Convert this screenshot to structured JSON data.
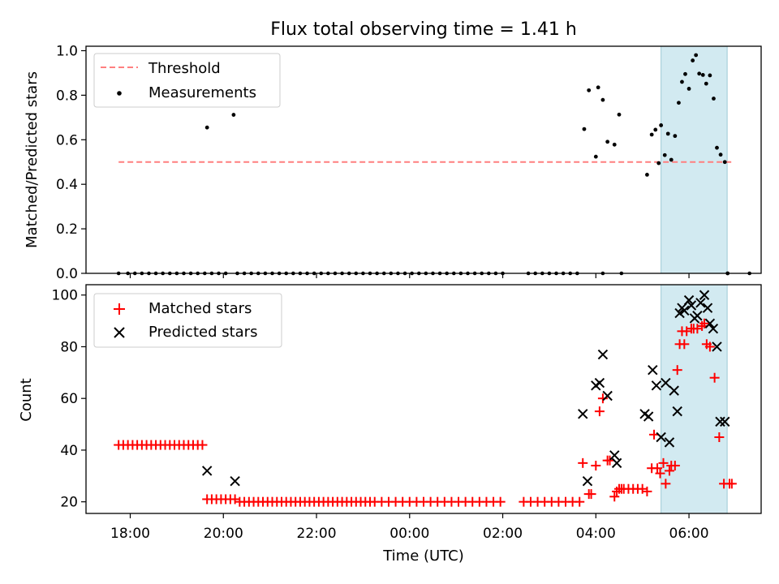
{
  "chart_data": {
    "title": "Flux total observing time = 1.41 h",
    "x_axis": {
      "label": "Time (UTC)",
      "range_hours": [
        17.05,
        31.55
      ],
      "ticks": [
        {
          "value": 18,
          "label": "18:00"
        },
        {
          "value": 20,
          "label": "20:00"
        },
        {
          "value": 22,
          "label": "22:00"
        },
        {
          "value": 24,
          "label": "00:00"
        },
        {
          "value": 26,
          "label": "02:00"
        },
        {
          "value": 28,
          "label": "04:00"
        },
        {
          "value": 30,
          "label": "06:00"
        }
      ],
      "shaded_interval_hours": [
        29.4,
        30.82
      ],
      "shade_color": "#add8e6"
    },
    "panels": [
      {
        "type": "scatter",
        "ylabel": "Matched/Predicted stars",
        "ylim": [
          0,
          1.02
        ],
        "yticks": [
          "0.0",
          "0.2",
          "0.4",
          "0.6",
          "0.8",
          "1.0"
        ],
        "legend": {
          "placement": "top-left",
          "entries": [
            "Threshold",
            "Measurements"
          ]
        },
        "threshold": {
          "name": "Threshold",
          "value": 0.5,
          "x_start": 17.75,
          "x_end": 30.92,
          "color": "#ff7f7f",
          "style": "dashed"
        },
        "series": [
          {
            "name": "Measurements",
            "color": "#000000",
            "marker": "dot",
            "x": [
              19.65,
              20.22,
              27.75,
              27.85,
              28.0,
              28.05,
              28.15,
              28.25,
              28.4,
              28.5,
              29.1,
              29.2,
              29.28,
              29.35,
              29.4,
              29.48,
              29.55,
              29.62,
              29.7,
              29.78,
              29.85,
              29.92,
              30.0,
              30.08,
              30.15,
              30.22,
              30.3,
              30.37,
              30.45,
              30.53,
              30.6,
              30.68,
              30.77,
              30.83
            ],
            "y": [
              0.655,
              0.712,
              0.648,
              0.822,
              0.524,
              0.835,
              0.779,
              0.591,
              0.578,
              0.713,
              0.443,
              0.623,
              0.645,
              0.495,
              0.665,
              0.531,
              0.627,
              0.51,
              0.617,
              0.766,
              0.86,
              0.895,
              0.829,
              0.956,
              0.98,
              0.897,
              0.891,
              0.852,
              0.889,
              0.785,
              0.564,
              0.533,
              0.5,
              0.0
            ],
            "zero_values_x": [
              17.75,
              17.95,
              18.1,
              18.25,
              18.4,
              18.55,
              18.7,
              18.85,
              19.0,
              19.15,
              19.3,
              19.45,
              19.6,
              19.75,
              19.9,
              20.05,
              20.3,
              20.45,
              20.6,
              20.75,
              20.9,
              21.05,
              21.2,
              21.35,
              21.5,
              21.65,
              21.8,
              21.95,
              22.1,
              22.25,
              22.4,
              22.55,
              22.7,
              22.85,
              23.0,
              23.15,
              23.3,
              23.45,
              23.6,
              23.75,
              23.9,
              24.05,
              24.2,
              24.35,
              24.5,
              24.65,
              24.8,
              24.95,
              25.1,
              25.25,
              25.4,
              25.55,
              25.7,
              25.85,
              26.0,
              26.55,
              26.7,
              26.85,
              27.0,
              27.15,
              27.3,
              27.45,
              27.6,
              28.15,
              28.55,
              31.3
            ]
          }
        ]
      },
      {
        "type": "scatter",
        "ylabel": "Count",
        "ylim": [
          15.5,
          104
        ],
        "yticks": [
          "20",
          "40",
          "60",
          "80",
          "100"
        ],
        "legend": {
          "placement": "top-left",
          "entries": [
            "Matched stars",
            "Predicted stars"
          ]
        },
        "series": [
          {
            "name": "Matched stars",
            "color": "#ff0000",
            "marker": "plus",
            "groups": [
              {
                "y": 42,
                "x_from": 17.75,
                "x_to": 19.55,
                "step": 0.1
              },
              {
                "y": 21,
                "x_from": 19.65,
                "x_to": 20.25,
                "step": 0.1
              },
              {
                "y": 20,
                "x_from": 20.35,
                "x_to": 23.3,
                "step": 0.1
              },
              {
                "y": 20,
                "x_from": 23.4,
                "x_to": 24.8,
                "step": 0.15
              },
              {
                "y": 20,
                "x_from": 24.9,
                "x_to": 26.05,
                "step": 0.15
              },
              {
                "y": 20,
                "x_from": 26.45,
                "x_to": 27.65,
                "step": 0.15
              }
            ],
            "x": [
              27.72,
              27.85,
              27.9,
              28.0,
              28.08,
              28.15,
              28.25,
              28.3,
              28.4,
              28.45,
              28.5,
              28.55,
              28.6,
              28.7,
              28.8,
              28.9,
              29.0,
              29.1,
              29.2,
              29.25,
              29.32,
              29.38,
              29.45,
              29.5,
              29.58,
              29.62,
              29.7,
              29.75,
              29.8,
              29.85,
              29.9,
              29.95,
              30.05,
              30.1,
              30.18,
              30.28,
              30.33,
              30.38,
              30.45,
              30.55,
              30.65,
              30.75,
              30.87,
              30.92
            ],
            "y": [
              35,
              23,
              23,
              34,
              55,
              60,
              36,
              36,
              22,
              24,
              25,
              25,
              25,
              25,
              25,
              25,
              25,
              24,
              33,
              46,
              33,
              31,
              35,
              27,
              32,
              34,
              34,
              71,
              81,
              86,
              81,
              86,
              87,
              87,
              87,
              88,
              89,
              81,
              80,
              68,
              45,
              27,
              27,
              27
            ]
          },
          {
            "name": "Predicted stars",
            "color": "#000000",
            "marker": "x",
            "x": [
              19.65,
              20.25,
              27.72,
              27.82,
              28.0,
              28.08,
              28.15,
              28.25,
              28.4,
              28.45,
              29.05,
              29.13,
              29.22,
              29.3,
              29.4,
              29.5,
              29.58,
              29.68,
              29.75,
              29.8,
              29.85,
              29.9,
              30.0,
              30.05,
              30.12,
              30.18,
              30.25,
              30.33,
              30.4,
              30.45,
              30.52,
              30.6,
              30.67,
              30.77
            ],
            "y": [
              32,
              28,
              54,
              28,
              65,
              66,
              77,
              61,
              38,
              35,
              54,
              53,
              71,
              65,
              45,
              66,
              43,
              63,
              55,
              93,
              95,
              94,
              98,
              96,
              91,
              92,
              97,
              100,
              95,
              89,
              87,
              80,
              51,
              51
            ]
          }
        ]
      }
    ]
  }
}
